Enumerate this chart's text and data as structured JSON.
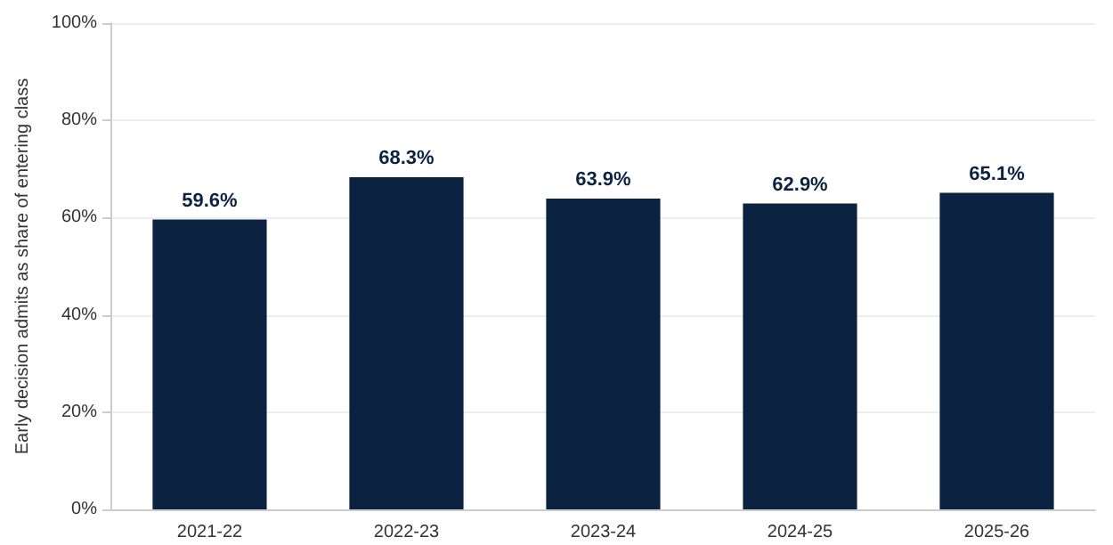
{
  "chart_data": {
    "type": "bar",
    "ylabel": "Early decision admits as share of entering class",
    "categories": [
      "2021-22",
      "2022-23",
      "2023-24",
      "2024-25",
      "2025-26"
    ],
    "values": [
      59.6,
      68.3,
      63.9,
      62.9,
      65.1
    ],
    "value_labels": [
      "59.6%",
      "68.3%",
      "63.9%",
      "62.9%",
      "65.1%"
    ],
    "color": "#0b2341",
    "ylim": [
      0,
      100
    ],
    "yticks": [
      {
        "value": 0,
        "label": "0%"
      },
      {
        "value": 20,
        "label": "20%"
      },
      {
        "value": 40,
        "label": "40%"
      },
      {
        "value": 60,
        "label": "60%"
      },
      {
        "value": 80,
        "label": "80%"
      },
      {
        "value": 100,
        "label": "100%"
      }
    ],
    "grid": "y"
  }
}
